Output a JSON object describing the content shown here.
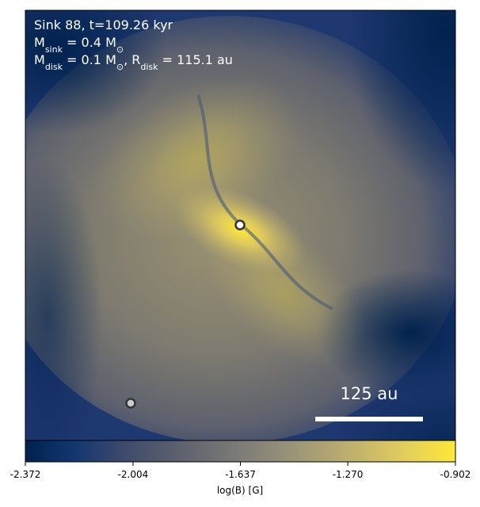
{
  "chart_data": {
    "type": "image",
    "annotations": [
      [
        {
          "text": "Sink 88, t=109.26 kyr"
        }
      ],
      [
        {
          "text": "M"
        },
        {
          "text": "sink",
          "sub": true
        },
        {
          "text": " = 0.4 M"
        },
        {
          "text": "⊙",
          "sub": true
        }
      ],
      [
        {
          "text": "M"
        },
        {
          "text": "disk",
          "sub": true
        },
        {
          "text": " = 0.1 M"
        },
        {
          "text": "⊙",
          "sub": true
        },
        {
          "text": ", R"
        },
        {
          "text": "disk",
          "sub": true
        },
        {
          "text": " = 115.1 au"
        }
      ]
    ],
    "scale_bar": "125 au",
    "colorbar": {
      "label": "log(B) [G]",
      "clim": [
        -2.372,
        -0.902
      ],
      "ticks": [
        -2.372,
        -2.004,
        -1.637,
        {
          "value": -1.27,
          "label": "-1.270"
        },
        -0.902
      ],
      "colors": [
        "#00224e",
        "#123570",
        "#3b496c",
        "#575d6d",
        "#707173",
        "#8a8779",
        "#a69d75",
        "#c4b56c",
        "#e4cf5b",
        "#fee838"
      ]
    }
  }
}
